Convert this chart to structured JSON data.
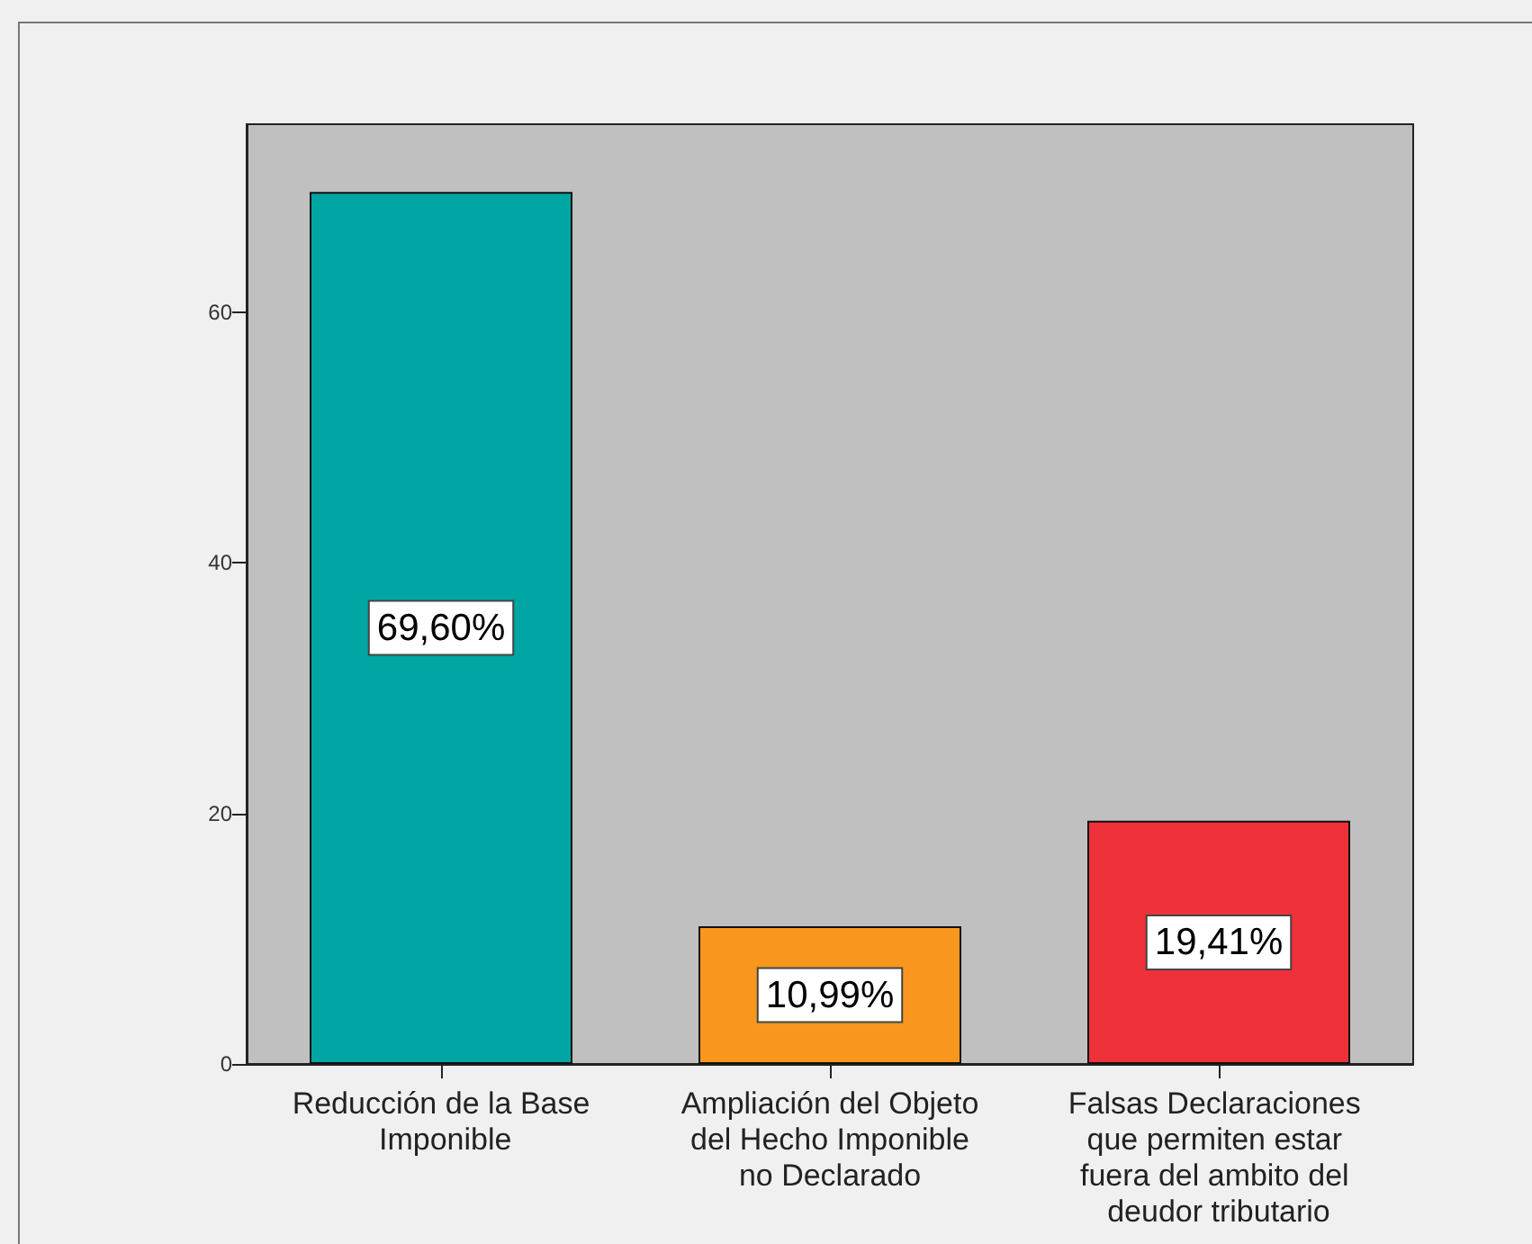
{
  "chart_data": {
    "type": "bar",
    "categories": [
      "Reducción de la Base Imponible",
      "Ampliación del Objeto del Hecho Imponible no Declarado",
      "Falsas Declaraciones que permiten estar fuera del ambito del deudor tributario"
    ],
    "values": [
      69.6,
      10.99,
      19.41
    ],
    "colors": [
      "#00a6a3",
      "#f8961e",
      "#ef3139"
    ],
    "value_labels": [
      "69,60%",
      "10,99%",
      "19,41%"
    ],
    "ylim": [
      0,
      75
    ],
    "yticks": [
      0,
      20,
      40,
      60
    ]
  }
}
